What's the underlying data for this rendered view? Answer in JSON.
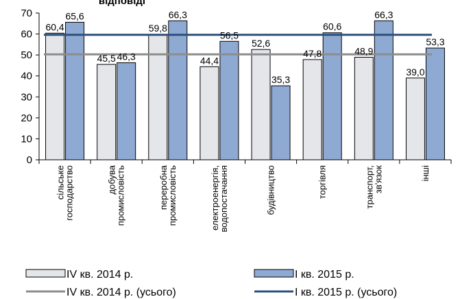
{
  "chart_data": {
    "type": "bar",
    "title": "відповіді",
    "xlabel": "",
    "ylabel": "",
    "ylim": [
      0,
      70
    ],
    "yticks": [
      0,
      10,
      20,
      30,
      40,
      50,
      60,
      70
    ],
    "grid": false,
    "legend_position": "bottom",
    "categories": [
      [
        "сільське",
        "господарство"
      ],
      [
        "добува",
        "промисловість"
      ],
      [
        "переробна",
        "промисловість"
      ],
      [
        "електроенергія,",
        "водопостачання"
      ],
      [
        "будівництво"
      ],
      [
        "торгівля"
      ],
      [
        "транспорт,",
        "зв'язок"
      ],
      [
        "інші"
      ]
    ],
    "series": [
      {
        "name": "IV кв. 2014 р.",
        "values": [
          60.4,
          45.5,
          59.8,
          44.4,
          52.6,
          47.8,
          48.9,
          39.0
        ],
        "labels": [
          "60,4",
          "45,5",
          "59,8",
          "44,4",
          "52,6",
          "47,8",
          "48,9",
          "39,0"
        ],
        "fill": "#e4e6ea",
        "stroke": "#000000"
      },
      {
        "name": "I кв. 2015 р.",
        "values": [
          65.6,
          46.3,
          66.3,
          56.5,
          35.3,
          60.6,
          66.3,
          53.3
        ],
        "labels": [
          "65,6",
          "46,3",
          "66,3",
          "56,5",
          "35,3",
          "60,6",
          "66,3",
          "53,3"
        ],
        "fill": "#8eaad3",
        "stroke": "#000000"
      }
    ],
    "reference_lines": [
      {
        "name": "IV кв. 2014 р. (усього)",
        "value": 50.3,
        "color": "#8c8c8c"
      },
      {
        "name": "I кв. 2015 р. (усього)",
        "value": 59.6,
        "color": "#2c4f7c"
      }
    ]
  }
}
